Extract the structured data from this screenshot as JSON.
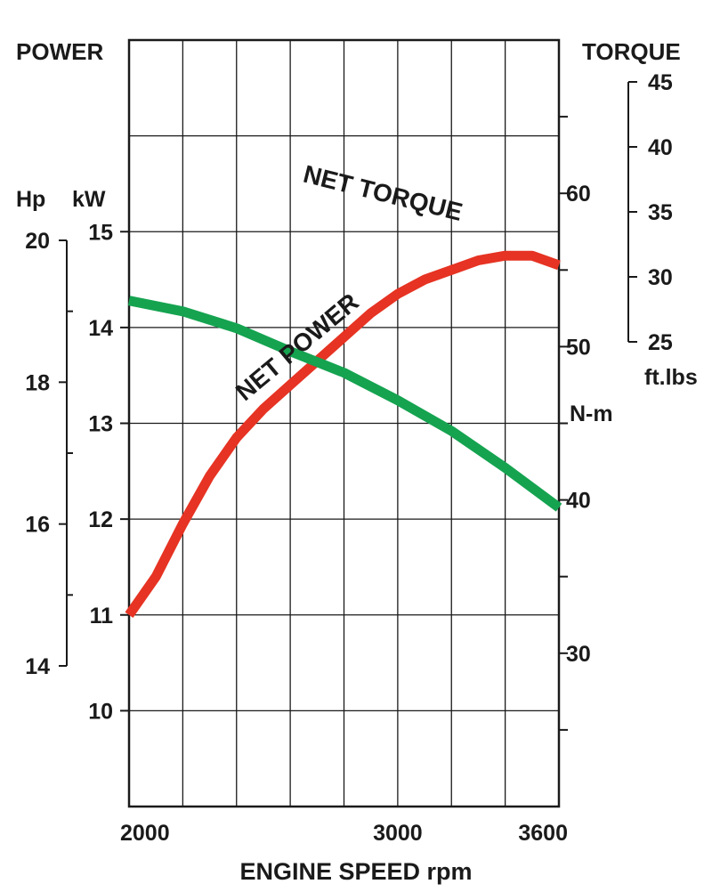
{
  "chart_data": {
    "type": "line",
    "xlabel": "ENGINE SPEED rpm",
    "x_ticks": [
      "2000",
      "3000",
      "3600"
    ],
    "xlim": [
      2000,
      3600
    ],
    "left_title": "POWER",
    "right_title": "TORQUE",
    "left_axes": {
      "kw": {
        "label": "kW",
        "ylim": [
          9,
          17
        ],
        "ticks": [
          "10",
          "11",
          "12",
          "13",
          "14",
          "15"
        ]
      },
      "hp": {
        "label": "Hp",
        "ylim": [
          14,
          20
        ],
        "ticks": [
          "14",
          "16",
          "18",
          "20"
        ]
      }
    },
    "right_axes": {
      "nm": {
        "label": "N-m",
        "ylim": [
          20,
          70
        ],
        "ticks": [
          "30",
          "40",
          "50",
          "60"
        ]
      },
      "ftlbs": {
        "label": "ft.lbs",
        "ylim": [
          25,
          45
        ],
        "ticks": [
          "25",
          "30",
          "35",
          "40",
          "45"
        ]
      }
    },
    "grid": true,
    "series": [
      {
        "name": "NET POWER",
        "axis": "kW",
        "color": "#e63323",
        "x": [
          2000,
          2100,
          2200,
          2300,
          2400,
          2500,
          2600,
          2700,
          2800,
          2900,
          3000,
          3100,
          3200,
          3300,
          3400,
          3500,
          3600
        ],
        "values": [
          11.0,
          11.4,
          11.95,
          12.45,
          12.85,
          13.15,
          13.4,
          13.65,
          13.9,
          14.15,
          14.35,
          14.5,
          14.6,
          14.7,
          14.75,
          14.75,
          14.65
        ]
      },
      {
        "name": "NET TORQUE",
        "axis": "N-m",
        "color": "#15a350",
        "x": [
          2000,
          2200,
          2400,
          2600,
          2800,
          3000,
          3200,
          3400,
          3600
        ],
        "values": [
          53.0,
          52.3,
          51.2,
          49.7,
          48.3,
          46.5,
          44.5,
          42.1,
          39.5
        ]
      }
    ]
  }
}
